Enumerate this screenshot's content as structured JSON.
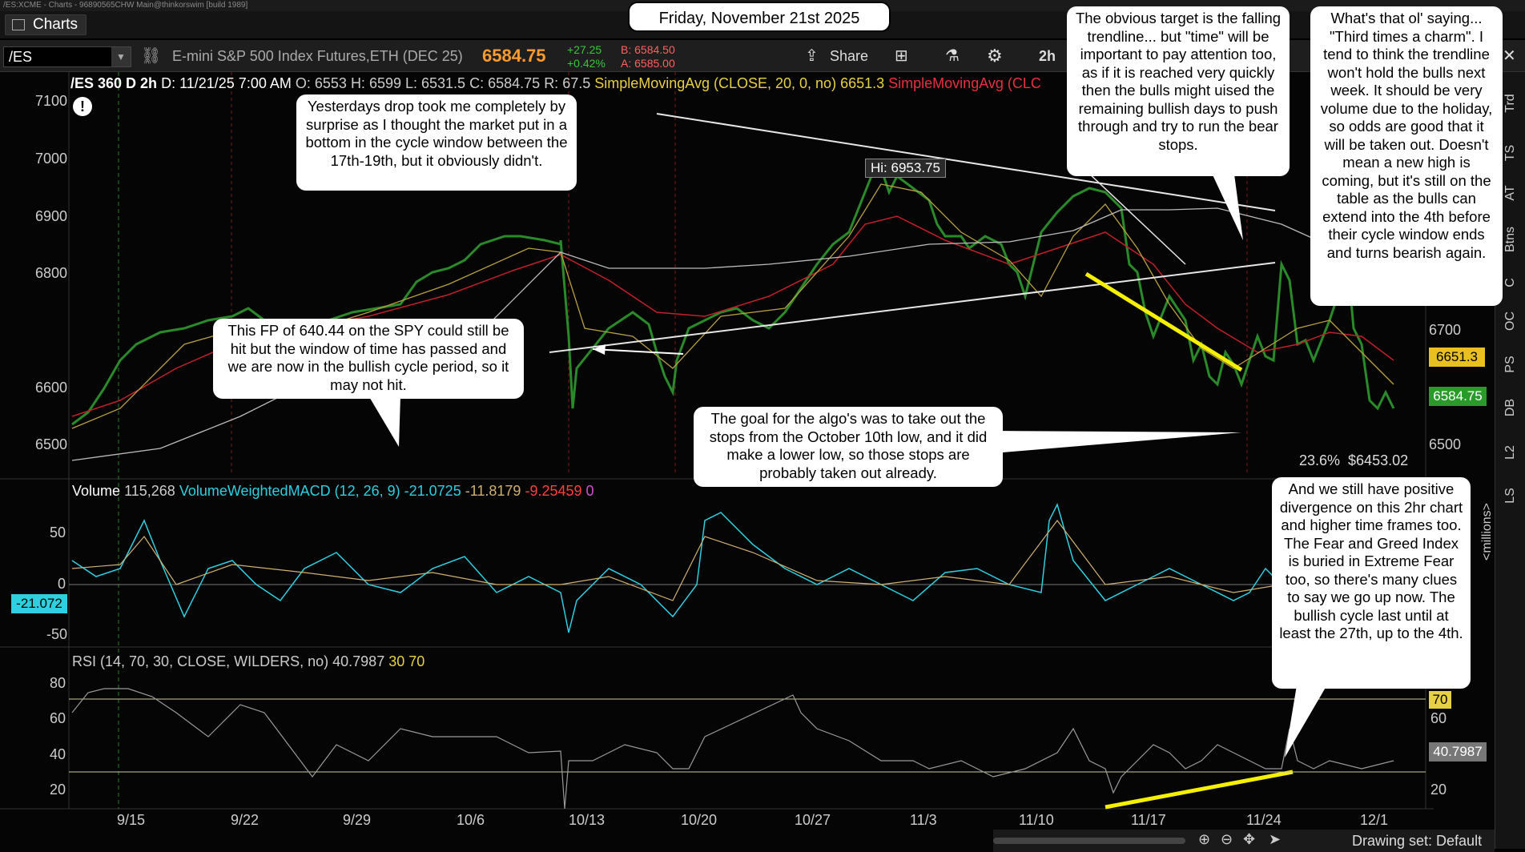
{
  "window": {
    "title": "/ES:XCME - Charts - 96890565CHW Main@thinkorswim [build 1989]"
  },
  "tab": {
    "label": "Charts"
  },
  "toolbar": {
    "symbol": "/ES",
    "description": "E-mini S&P 500 Index Futures,ETH (DEC 25)",
    "last": "6584.75",
    "change": "+27.25",
    "change_pct": "+0.42%",
    "bid": "B: 6584.50",
    "ask": "A: 6585.00",
    "share_label": "Share",
    "timeframe": "2h"
  },
  "header_date": "Friday, November 21st 2025",
  "price_header": {
    "symbol": "/ES 360 D 2h",
    "date": "D: 11/21/25 7:00 AM",
    "open": "O: 6553",
    "high": "H: 6599",
    "low": "L: 6531.5",
    "close": "C: 6584.75",
    "range": "R: 67.5",
    "sma20": "SimpleMovingAvg (CLOSE, 20, 0, no)",
    "sma20_val": "6651.3",
    "sma2": "SimpleMovingAvg (CLC"
  },
  "price_axis": [
    "7100",
    "7000",
    "6900",
    "6800",
    "6700",
    "6600",
    "6500"
  ],
  "price_tags": {
    "sma": "6651.3",
    "last": "6584.75",
    "fib": "23.6%  $6453.02",
    "hi": "Hi: 6953.75"
  },
  "volume_header": {
    "label": "Volume",
    "volume": "115,268",
    "macd": "VolumeWeightedMACD (12, 26, 9)",
    "v1": "-21.0725",
    "v2": "-11.8179",
    "v3": "-9.25459",
    "v4": "0"
  },
  "macd_axis": [
    "50",
    "0",
    "-50"
  ],
  "macd_tag": "-21.072",
  "millions": "<millions>",
  "rsi_header": {
    "label": "RSI (14, 70, 30, CLOSE, WILDERS, no)",
    "value": "40.7987",
    "os": "30",
    "ob": "70"
  },
  "rsi_axis": [
    "80",
    "60",
    "40",
    "20"
  ],
  "rsi_right_axis": [
    "70",
    "60",
    "40.7987",
    "20"
  ],
  "date_axis": [
    "9/15",
    "9/22",
    "9/29",
    "10/6",
    "10/13",
    "10/20",
    "10/27",
    "11/3",
    "11/10",
    "11/17",
    "11/24",
    "12/1"
  ],
  "drawing_set": "Drawing set: Default",
  "rail": [
    "Trd",
    "TS",
    "AT",
    "Btns",
    "C",
    "OC",
    "PS",
    "DB",
    "L2",
    "LS"
  ],
  "annotations": {
    "yesterday": "Yesterdays drop took me completely by surprise as I thought the market put in a bottom in the cycle window between the 17th-19th, but it obviously didn't.",
    "fp": "This FP of 640.44 on the SPY could still be hit but the window of time has passed and we are now in the bullish cycle period, so it may not hit.",
    "algo": "The goal for the algo's was to take out the stops from the October 10th low, and it did make a lower low, so those stops are probably taken out already.",
    "target": "The obvious target is the falling trendline... but \"time\" will be important to pay attention too, as if it is reached very quickly then the bulls might uised the remaining bullish days to push through and try to run the bear stops.",
    "charm": "What's that ol' saying... \"Third times a charm\".  I tend to think the trendline won't hold the bulls next week.  It should be very volume due to the holiday, so odds are good that it will be taken out.  Doesn't mean a new high is coming, but it's still on the table as the bulls can extend into the 4th before their cycle window ends and turns bearish again.",
    "divergence": "And we still have positive divergence on this 2hr chart and higher time frames too.  The Fear and Greed Index is buried in Extreme Fear too, so there's many clues to say we go up now.  The bullish cycle last until at least the 27th, up to the 4th."
  },
  "colors": {
    "price_up": "#22c322",
    "price_down": "#e33",
    "trend_yellow": "#f5f000",
    "sma_red": "#c0202a",
    "sma_gold": "#b8a040",
    "macd_cyan": "#2ed0e0"
  }
}
